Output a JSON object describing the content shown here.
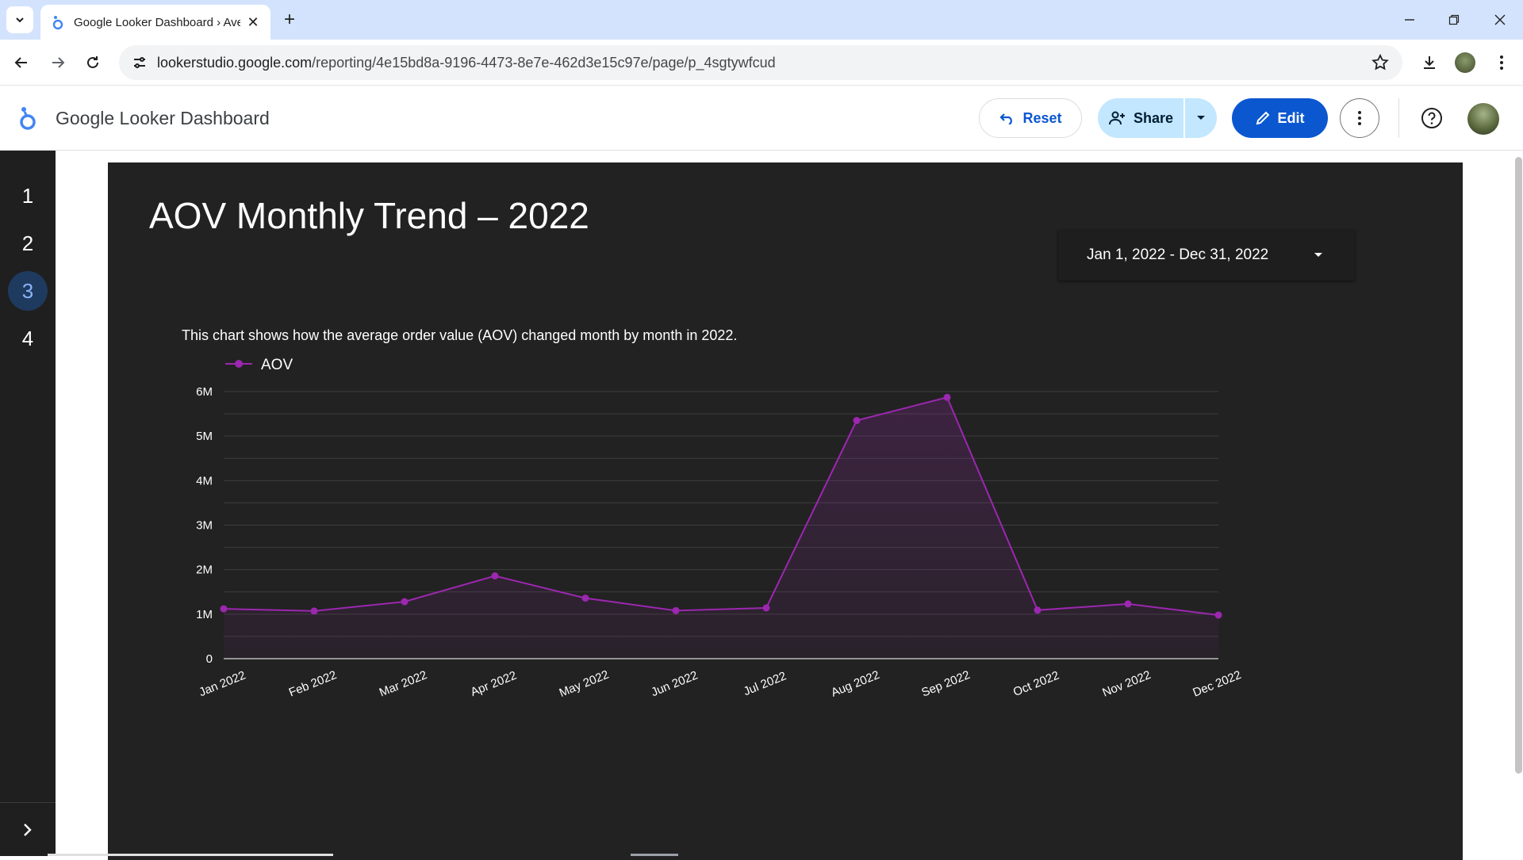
{
  "browser": {
    "tab_title": "Google Looker Dashboard › Average Order Value",
    "url_host": "lookerstudio.google.com",
    "url_path": "/reporting/4e15bd8a-9196-4473-8e7e-462d3e15c97e/page/p_4sgtywfcud"
  },
  "header": {
    "app_title": "Google Looker Dashboard",
    "reset_label": "Reset",
    "share_label": "Share",
    "edit_label": "Edit"
  },
  "pages": {
    "items": [
      "1",
      "2",
      "3",
      "4"
    ],
    "active_index": 2
  },
  "report": {
    "title": "AOV Monthly Trend – 2022",
    "date_range": "Jan 1, 2022 - Dec 31, 2022",
    "description": "This chart shows how the average order value (AOV) changed month by month in 2022."
  },
  "colors": {
    "accent_blue": "#0b57d0",
    "series_purple": "#9c27b0",
    "report_bg": "#222222"
  },
  "chart_data": {
    "type": "area",
    "title": "",
    "xlabel": "",
    "ylabel": "",
    "legend_position": "top-left",
    "grid": true,
    "ylim": [
      0,
      6000000
    ],
    "y_ticks": [
      "0",
      "1M",
      "2M",
      "3M",
      "4M",
      "5M",
      "6M"
    ],
    "categories": [
      "Jan 2022",
      "Feb 2022",
      "Mar 2022",
      "Apr 2022",
      "May 2022",
      "Jun 2022",
      "Jul 2022",
      "Aug 2022",
      "Sep 2022",
      "Oct 2022",
      "Nov 2022",
      "Dec 2022"
    ],
    "series": [
      {
        "name": "AOV",
        "values": [
          1120000,
          1070000,
          1280000,
          1860000,
          1360000,
          1080000,
          1140000,
          5350000,
          5870000,
          1090000,
          1230000,
          980000
        ]
      }
    ]
  }
}
